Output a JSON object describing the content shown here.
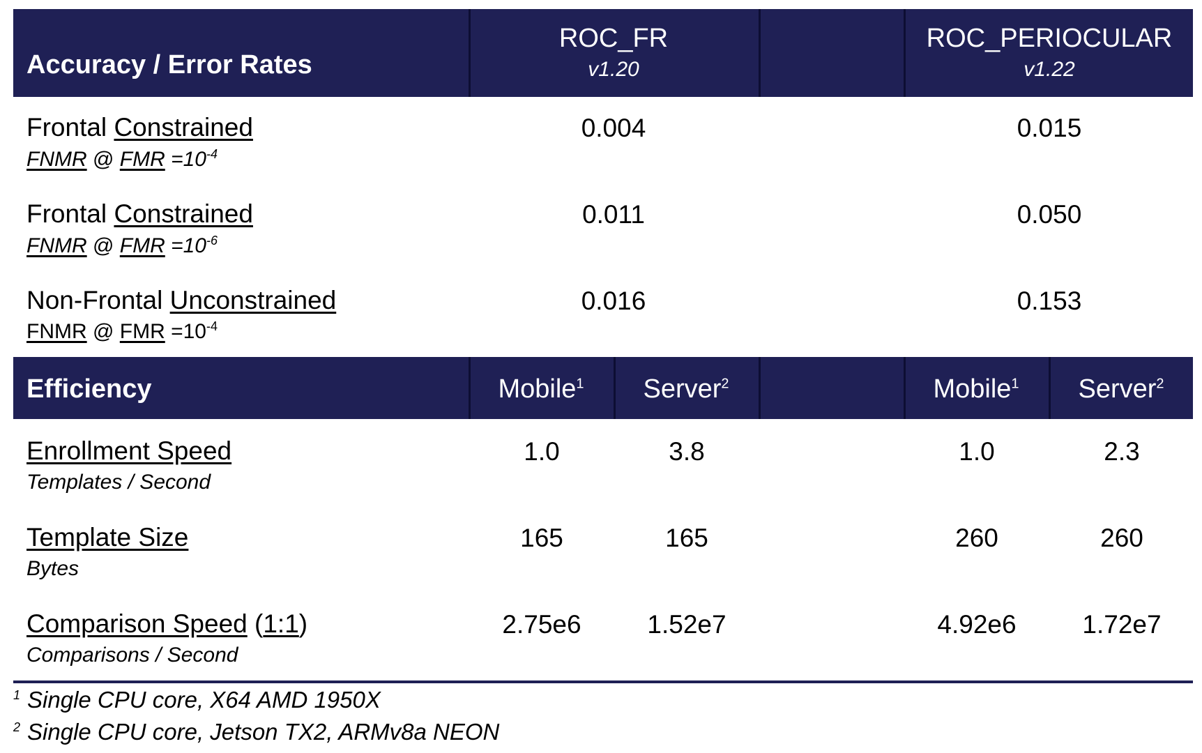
{
  "header": {
    "accuracy_title": "Accuracy / Error Rates",
    "efficiency_title": "Efficiency",
    "products": [
      {
        "name": "ROC_FR",
        "version": "v1.20"
      },
      {
        "name": "ROC_PERIOCULAR",
        "version": "v1.22"
      }
    ],
    "mobile_label": "Mobile",
    "mobile_sup": "1",
    "server_label": "Server",
    "server_sup": "2"
  },
  "accuracy_rows": [
    {
      "label_plain": "Frontal ",
      "label_underlined": "Constrained",
      "metric_a": "FNMR",
      "metric_at": " @ ",
      "metric_b": "FMR",
      "metric_eq": " =10",
      "metric_exp": "-4",
      "fr": "0.004",
      "periocular": "0.015"
    },
    {
      "label_plain": "Frontal ",
      "label_underlined": "Constrained",
      "metric_a": "FNMR",
      "metric_at": " @ ",
      "metric_b": "FMR",
      "metric_eq": " =10",
      "metric_exp": "-6",
      "fr": "0.011",
      "periocular": "0.050"
    },
    {
      "label_plain": "Non-Frontal ",
      "label_underlined": "Unconstrained",
      "metric_a": "FNMR",
      "metric_at": " @ ",
      "metric_b": "FMR",
      "metric_eq": " =10",
      "metric_exp": "-4",
      "fr": "0.016",
      "periocular": "0.153"
    }
  ],
  "efficiency_rows": [
    {
      "label": "Enrollment Speed",
      "label_suffix": "",
      "label_suffix_u": "",
      "label_close": "",
      "unit": "Templates / Second",
      "fr_mobile": "1.0",
      "fr_server": "3.8",
      "peri_mobile": "1.0",
      "peri_server": "2.3"
    },
    {
      "label": "Template Size",
      "label_suffix": "",
      "label_suffix_u": "",
      "label_close": "",
      "unit": "Bytes",
      "fr_mobile": "165",
      "fr_server": "165",
      "peri_mobile": "260",
      "peri_server": "260"
    },
    {
      "label": "Comparison Speed",
      "label_suffix": " (",
      "label_suffix_u": "1:1",
      "label_close": ")",
      "unit": "Comparisons / Second",
      "fr_mobile": "2.75e6",
      "fr_server": "1.52e7",
      "peri_mobile": "4.92e6",
      "peri_server": "1.72e7"
    }
  ],
  "footnotes": [
    {
      "mark": "1",
      "text": "Single CPU core, X64 AMD 1950X"
    },
    {
      "mark": "2",
      "text": "Single CPU core, Jetson TX2, ARMv8a NEON"
    }
  ],
  "colors": {
    "header_band": "#1f2055",
    "separator": "#0d0e33"
  }
}
